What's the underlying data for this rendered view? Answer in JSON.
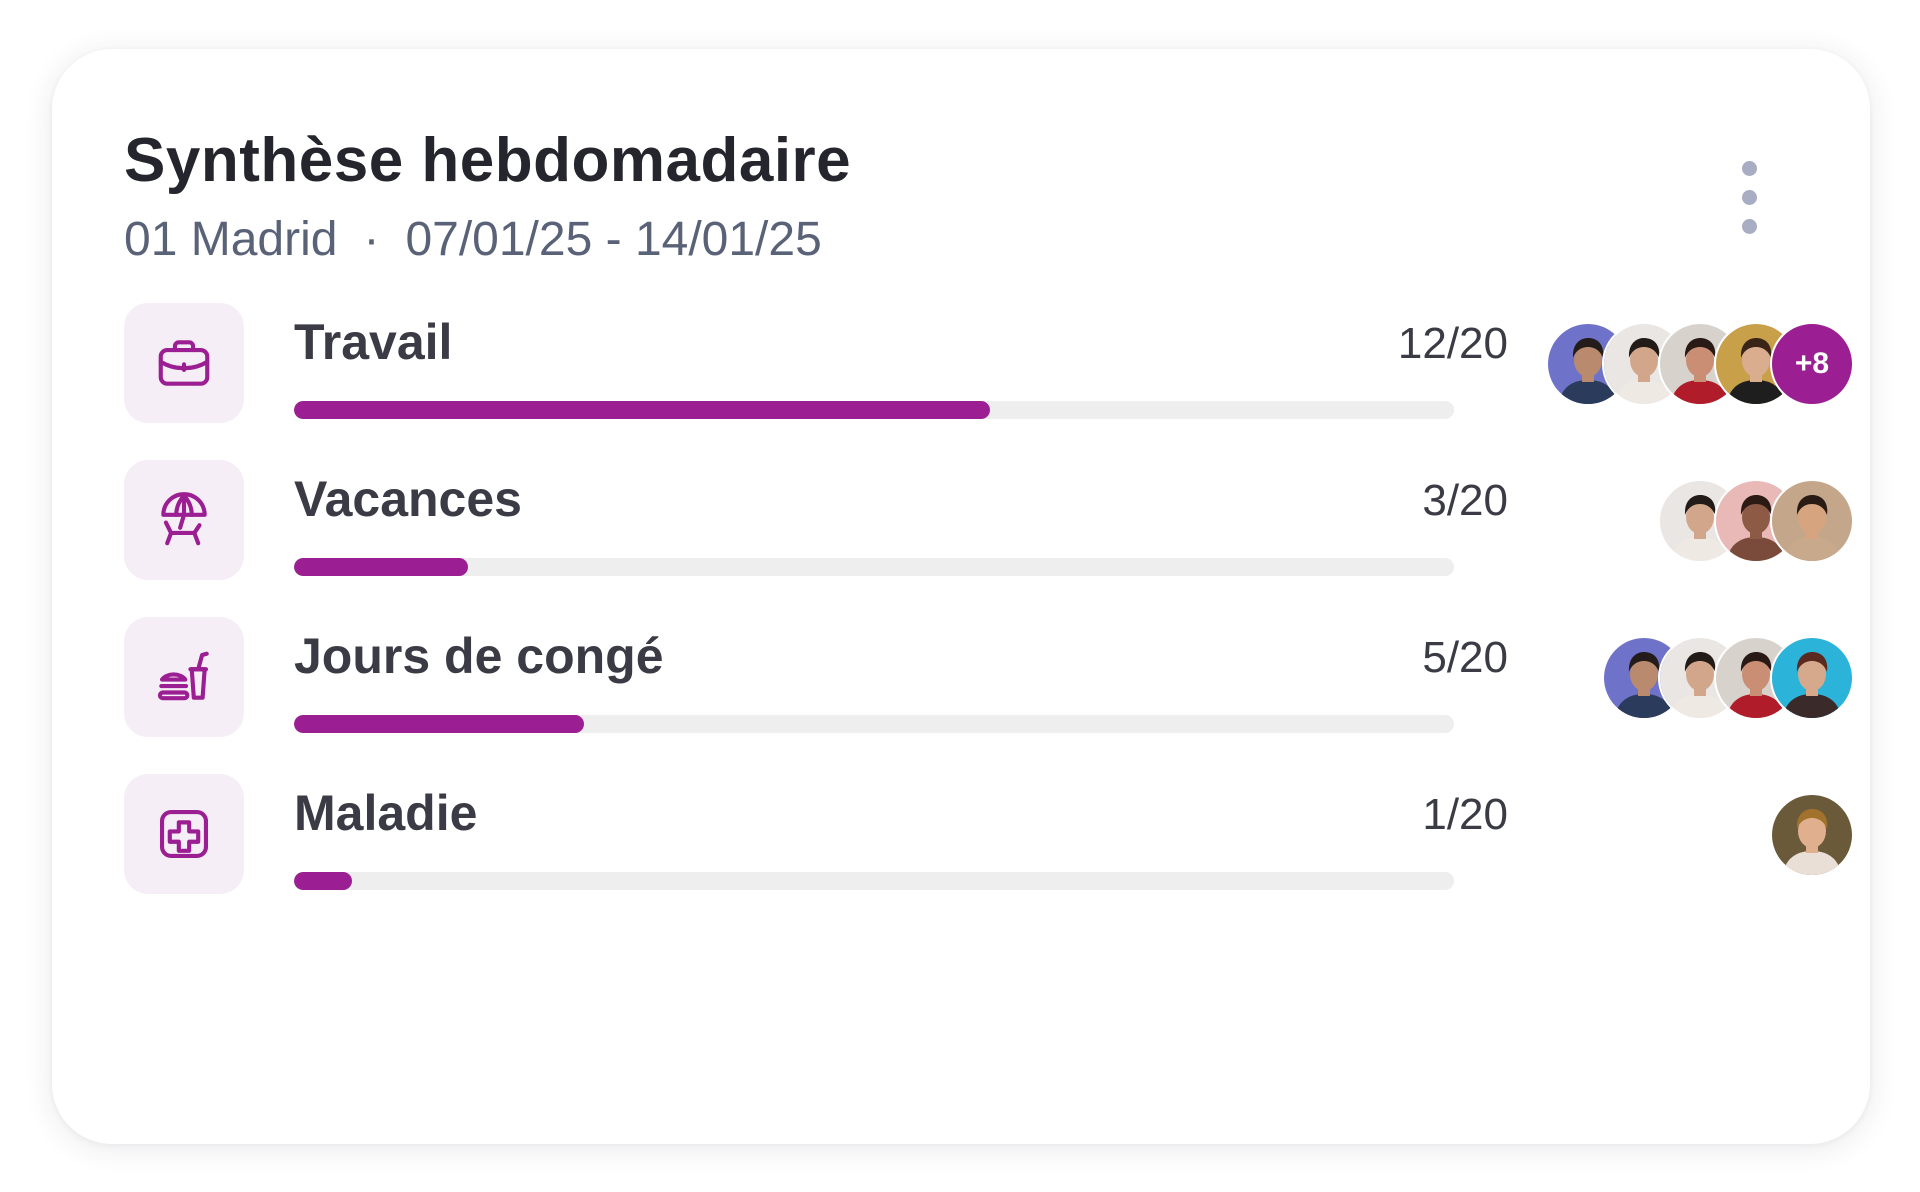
{
  "widget": {
    "title": "Synthèse hebdomadaire",
    "location": "01 Madrid",
    "separator": "·",
    "date_range": "07/01/25 - 14/01/25",
    "menu_icon": "more-vertical-icon"
  },
  "colors": {
    "accent": "#9b1e92",
    "icon_tile_bg": "#f6eef6",
    "track": "#eeeeee",
    "title_text": "#25252d",
    "subtitle_text": "#5a6278",
    "menu_dots": "#a9adc4"
  },
  "categories": [
    {
      "label": "Travail",
      "icon": "briefcase-icon",
      "count": "12/20",
      "progress": 0.6,
      "avatars": [
        {
          "bg": "#6f72c9",
          "skin": "#b98a6e",
          "hair": "#241c1a",
          "top": "#2a3b5c"
        },
        {
          "bg": "#e9e6e3",
          "skin": "#d2a68a",
          "hair": "#221b18",
          "top": "#efe9e4"
        },
        {
          "bg": "#d7d2cc",
          "skin": "#c98e73",
          "hair": "#2a1a16",
          "top": "#b01c2a"
        },
        {
          "bg": "#c9a04a",
          "skin": "#d9ad8e",
          "hair": "#3a2418",
          "top": "#1e1e1e"
        }
      ],
      "more": "+8"
    },
    {
      "label": "Vacances",
      "icon": "beach-umbrella-chair-icon",
      "count": "3/20",
      "progress": 0.15,
      "avatars": [
        {
          "bg": "#e9e6e3",
          "skin": "#d2a68a",
          "hair": "#221b18",
          "top": "#efe9e4"
        },
        {
          "bg": "#e8b9b7",
          "skin": "#8c5a45",
          "hair": "#2b1b14",
          "top": "#7a4a3a"
        },
        {
          "bg": "#c4a68a",
          "skin": "#d6a57f",
          "hair": "#2a1c14",
          "top": "#c9a98c"
        }
      ],
      "more": ""
    },
    {
      "label": "Jours de congé",
      "icon": "food-drink-icon",
      "count": "5/20",
      "progress": 0.25,
      "avatars": [
        {
          "bg": "#6f72c9",
          "skin": "#b98a6e",
          "hair": "#241c1a",
          "top": "#2a3b5c"
        },
        {
          "bg": "#e9e6e3",
          "skin": "#d2a68a",
          "hair": "#221b18",
          "top": "#efe9e4"
        },
        {
          "bg": "#d7d2cc",
          "skin": "#c98e73",
          "hair": "#2a1a16",
          "top": "#b01c2a"
        },
        {
          "bg": "#2bb3d9",
          "skin": "#d7a98c",
          "hair": "#5a2a20",
          "top": "#3a2a2a"
        }
      ],
      "more": ""
    },
    {
      "label": "Maladie",
      "icon": "medical-cross-icon",
      "count": "1/20",
      "progress": 0.05,
      "avatars": [
        {
          "bg": "#6b5a3a",
          "skin": "#e0b08e",
          "hair": "#a0722c",
          "top": "#e9dfd6"
        }
      ],
      "more": ""
    }
  ]
}
